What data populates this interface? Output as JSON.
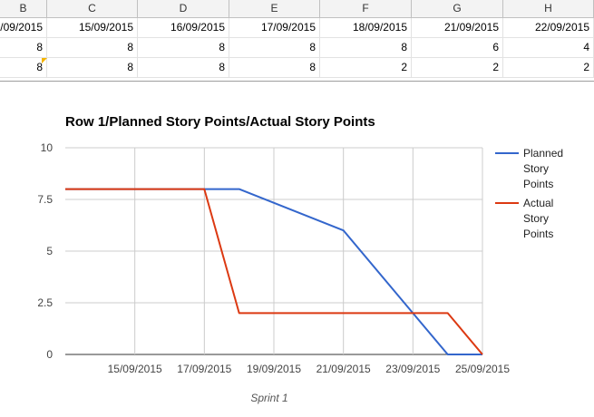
{
  "sheet": {
    "columns": [
      {
        "letter": "B",
        "date": "/09/2015"
      },
      {
        "letter": "C",
        "date": "15/09/2015"
      },
      {
        "letter": "D",
        "date": "16/09/2015"
      },
      {
        "letter": "E",
        "date": "17/09/2015"
      },
      {
        "letter": "F",
        "date": "18/09/2015"
      },
      {
        "letter": "G",
        "date": "21/09/2015"
      },
      {
        "letter": "H",
        "date": "22/09/2015"
      }
    ],
    "rows": [
      [
        "8",
        "8",
        "8",
        "8",
        "8",
        "6",
        "4"
      ],
      [
        "8",
        "8",
        "8",
        "8",
        "2",
        "2",
        "2"
      ]
    ]
  },
  "chart_data": {
    "type": "line",
    "title": "Row 1/Planned Story Points/Actual Story Points",
    "xlabel": "Sprint 1",
    "ylabel": "",
    "ylim": [
      0,
      10
    ],
    "yticks": [
      "0",
      "2.5",
      "5",
      "7.5",
      "10"
    ],
    "xlim": [
      "13/09/2015",
      "25/09/2015"
    ],
    "xticks": [
      "15/09/2015",
      "17/09/2015",
      "19/09/2015",
      "21/09/2015",
      "23/09/2015",
      "25/09/2015"
    ],
    "grid": true,
    "legend": "right",
    "series": [
      {
        "name": "Planned Story Points",
        "legend_lines": [
          "Planned",
          "Story",
          "Points"
        ],
        "color": "#3366cc",
        "points": [
          [
            "13/09/2015",
            8
          ],
          [
            "17/09/2015",
            8
          ],
          [
            "18/09/2015",
            8
          ],
          [
            "21/09/2015",
            6
          ],
          [
            "23/09/2015",
            2
          ],
          [
            "24/09/2015",
            0
          ],
          [
            "25/09/2015",
            0
          ]
        ]
      },
      {
        "name": "Actual Story Points",
        "legend_lines": [
          "Actual",
          "Story",
          "Points"
        ],
        "color": "#dc3912",
        "points": [
          [
            "13/09/2015",
            8
          ],
          [
            "17/09/2015",
            8
          ],
          [
            "18/09/2015",
            2
          ],
          [
            "21/09/2015",
            2
          ],
          [
            "23/09/2015",
            2
          ],
          [
            "24/09/2015",
            2
          ],
          [
            "25/09/2015",
            0
          ]
        ]
      }
    ]
  }
}
